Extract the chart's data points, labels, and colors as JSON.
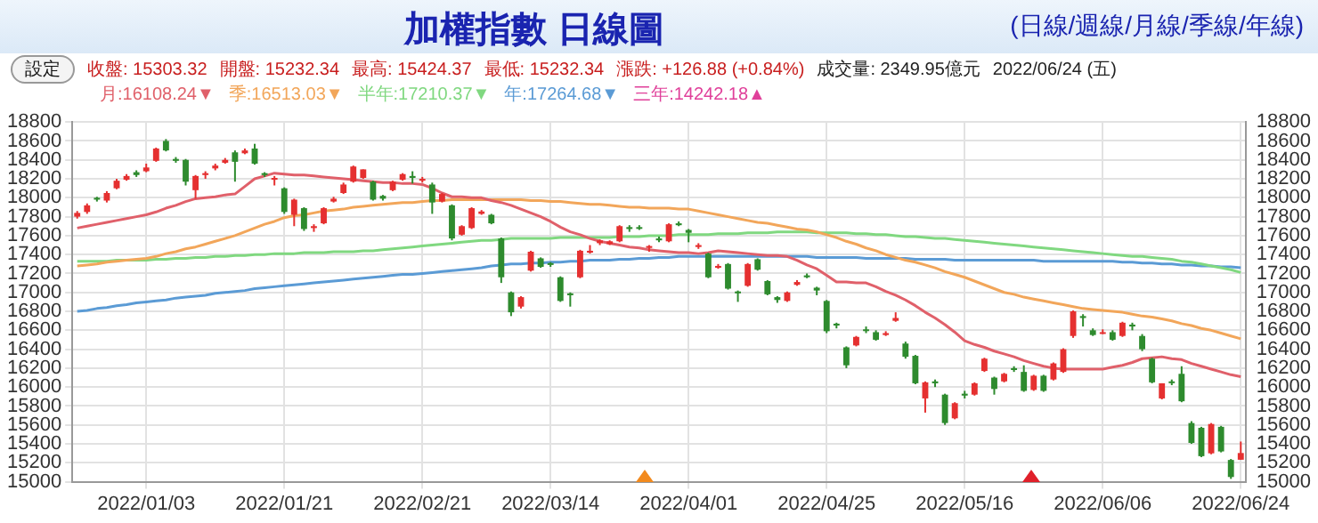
{
  "chart_data": {
    "type": "candlestick",
    "title": "加權指數 日線圖",
    "annotations": [
      "(日線/週線/月線/季線/年線)",
      "設定",
      "收盤: 15303.32",
      "開盤: 15232.34",
      "最高: 15424.37",
      "最低: 15232.34",
      "漲跌: +126.88 (+0.84%)",
      "成交量: 2349.95億元",
      "2022/06/24 (五)"
    ],
    "categories": [
      null,
      null,
      null,
      null,
      null,
      null,
      null,
      "2022/01/03",
      null,
      null,
      null,
      null,
      null,
      null,
      null,
      null,
      null,
      null,
      null,
      null,
      null,
      "2022/01/21",
      null,
      null,
      null,
      null,
      null,
      null,
      null,
      null,
      null,
      null,
      null,
      null,
      null,
      "2022/02/21",
      null,
      null,
      null,
      null,
      null,
      null,
      null,
      null,
      null,
      null,
      null,
      null,
      "2022/03/14",
      null,
      null,
      null,
      null,
      null,
      null,
      null,
      null,
      null,
      null,
      null,
      null,
      null,
      "2022/04/01",
      null,
      null,
      null,
      null,
      null,
      null,
      null,
      null,
      null,
      null,
      null,
      null,
      null,
      "2022/04/25",
      null,
      null,
      null,
      null,
      null,
      null,
      null,
      null,
      null,
      null,
      null,
      null,
      null,
      "2022/05/16",
      null,
      null,
      null,
      null,
      null,
      null,
      null,
      null,
      null,
      null,
      null,
      null,
      null,
      "2022/06/06",
      null,
      null,
      null,
      null,
      null,
      null,
      null,
      null,
      null,
      null,
      null,
      null,
      null,
      "2022/06/24"
    ],
    "ohlc": [
      [
        17800,
        17860,
        17780,
        17840
      ],
      [
        17850,
        17940,
        17830,
        17920
      ],
      [
        18000,
        18010,
        17960,
        17980
      ],
      [
        17970,
        18070,
        17950,
        18050
      ],
      [
        18100,
        18200,
        18090,
        18180
      ],
      [
        18190,
        18250,
        18180,
        18230
      ],
      [
        18270,
        18290,
        18220,
        18240
      ],
      [
        18280,
        18360,
        18270,
        18320
      ],
      [
        18390,
        18530,
        18380,
        18520
      ],
      [
        18600,
        18620,
        18490,
        18500
      ],
      [
        18410,
        18430,
        18370,
        18390
      ],
      [
        18400,
        18410,
        18130,
        18170
      ],
      [
        18080,
        18240,
        17990,
        18230
      ],
      [
        18240,
        18280,
        18200,
        18260
      ],
      [
        18310,
        18360,
        18290,
        18340
      ],
      [
        18370,
        18420,
        18360,
        18400
      ],
      [
        18480,
        18500,
        18170,
        18380
      ],
      [
        18470,
        18520,
        18460,
        18500
      ],
      [
        18520,
        18570,
        18350,
        18360
      ],
      [
        18260,
        18270,
        18220,
        18240
      ],
      [
        18190,
        18230,
        18130,
        18210
      ],
      [
        18100,
        18110,
        17830,
        17850
      ],
      [
        17820,
        17990,
        17700,
        17980
      ],
      [
        17890,
        17900,
        17650,
        17670
      ],
      [
        17680,
        17720,
        17640,
        17700
      ],
      [
        17730,
        17900,
        17720,
        17890
      ],
      [
        17960,
        18010,
        17950,
        17990
      ],
      [
        18050,
        18160,
        18040,
        18140
      ],
      [
        18170,
        18340,
        18160,
        18330
      ],
      [
        18210,
        18300,
        18200,
        18300
      ],
      [
        18170,
        18180,
        17970,
        17980
      ],
      [
        18020,
        18030,
        17970,
        17990
      ],
      [
        18080,
        18180,
        18070,
        18170
      ],
      [
        18190,
        18260,
        18180,
        18250
      ],
      [
        18230,
        18280,
        18150,
        18210
      ],
      [
        18180,
        18220,
        18160,
        18200
      ],
      [
        18140,
        18160,
        17830,
        17950
      ],
      [
        17960,
        18050,
        17950,
        18040
      ],
      [
        17920,
        17930,
        17550,
        17570
      ],
      [
        17610,
        17710,
        17600,
        17700
      ],
      [
        17680,
        17900,
        17670,
        17890
      ],
      [
        17830,
        17870,
        17820,
        17855
      ],
      [
        17820,
        17830,
        17720,
        17730
      ],
      [
        17570,
        17580,
        17100,
        17160
      ],
      [
        17000,
        17010,
        16750,
        16790
      ],
      [
        16850,
        16960,
        16830,
        16950
      ],
      [
        17230,
        17440,
        17220,
        17430
      ],
      [
        17360,
        17370,
        17260,
        17270
      ],
      [
        17310,
        17320,
        17270,
        17290
      ],
      [
        17160,
        17170,
        16900,
        16910
      ],
      [
        16990,
        17000,
        16850,
        16970
      ],
      [
        17160,
        17450,
        17150,
        17440
      ],
      [
        17420,
        17500,
        17410,
        17440
      ],
      [
        17520,
        17560,
        17500,
        17550
      ],
      [
        17510,
        17550,
        17500,
        17540
      ],
      [
        17540,
        17710,
        17530,
        17700
      ],
      [
        17690,
        17710,
        17640,
        17670
      ],
      [
        17690,
        17710,
        17660,
        17680
      ],
      [
        17470,
        17500,
        17430,
        17490
      ],
      [
        17570,
        17590,
        17530,
        17550
      ],
      [
        17540,
        17730,
        17530,
        17720
      ],
      [
        17730,
        17750,
        17700,
        17710
      ],
      [
        17660,
        17670,
        17530,
        17630
      ],
      [
        17480,
        17520,
        17460,
        17500
      ],
      [
        17410,
        17420,
        17150,
        17160
      ],
      [
        17260,
        17300,
        17250,
        17280
      ],
      [
        17300,
        17310,
        17030,
        17040
      ],
      [
        17010,
        17020,
        16900,
        16990
      ],
      [
        17070,
        17310,
        17060,
        17300
      ],
      [
        17350,
        17360,
        17230,
        17240
      ],
      [
        17120,
        17130,
        16970,
        16980
      ],
      [
        16950,
        16960,
        16890,
        16920
      ],
      [
        16910,
        17010,
        16900,
        17000
      ],
      [
        17080,
        17130,
        17070,
        17110
      ],
      [
        17180,
        17200,
        17150,
        17160
      ],
      [
        17050,
        17060,
        16970,
        17020
      ],
      [
        16910,
        16920,
        16570,
        16590
      ],
      [
        16670,
        16680,
        16620,
        16650
      ],
      [
        16420,
        16430,
        16200,
        16230
      ],
      [
        16440,
        16540,
        16430,
        16530
      ],
      [
        16610,
        16640,
        16570,
        16600
      ],
      [
        16580,
        16600,
        16490,
        16500
      ],
      [
        16550,
        16590,
        16540,
        16570
      ],
      [
        16700,
        16790,
        16690,
        16730
      ],
      [
        16460,
        16480,
        16300,
        16320
      ],
      [
        16330,
        16340,
        16030,
        16040
      ],
      [
        15880,
        16060,
        15730,
        16050
      ],
      [
        16060,
        16080,
        16000,
        16040
      ],
      [
        15920,
        15930,
        15600,
        15620
      ],
      [
        15670,
        15840,
        15660,
        15830
      ],
      [
        15930,
        15960,
        15880,
        15910
      ],
      [
        15920,
        16050,
        15910,
        16040
      ],
      [
        16170,
        16310,
        16160,
        16300
      ],
      [
        16100,
        16110,
        15920,
        15980
      ],
      [
        16060,
        16150,
        16050,
        16140
      ],
      [
        16200,
        16220,
        16160,
        16180
      ],
      [
        16160,
        16230,
        15950,
        15960
      ],
      [
        15970,
        16130,
        15960,
        16120
      ],
      [
        16120,
        16130,
        15950,
        15960
      ],
      [
        16080,
        16260,
        16070,
        16250
      ],
      [
        16160,
        16410,
        16150,
        16400
      ],
      [
        16540,
        16810,
        16520,
        16800
      ],
      [
        16750,
        16770,
        16640,
        16730
      ],
      [
        16600,
        16620,
        16540,
        16550
      ],
      [
        16570,
        16610,
        16560,
        16580
      ],
      [
        16580,
        16600,
        16490,
        16500
      ],
      [
        16540,
        16690,
        16530,
        16680
      ],
      [
        16660,
        16680,
        16600,
        16640
      ],
      [
        16540,
        16560,
        16380,
        16400
      ],
      [
        16300,
        16310,
        16040,
        16050
      ],
      [
        15880,
        16040,
        15870,
        16040
      ],
      [
        16060,
        16080,
        16020,
        16050
      ],
      [
        16140,
        16220,
        15840,
        15850
      ],
      [
        15620,
        15640,
        15400,
        15410
      ],
      [
        15570,
        15580,
        15260,
        15270
      ],
      [
        15300,
        15620,
        15290,
        15610
      ],
      [
        15580,
        15590,
        15310,
        15320
      ],
      [
        15230,
        15240,
        15030,
        15050
      ],
      [
        15232.34,
        15424.37,
        15232.34,
        15303.32
      ]
    ],
    "colors": [
      "#e53030",
      "#e53030",
      "#2e8b2e",
      "#e53030",
      "#e53030",
      "#e53030",
      "#2e8b2e",
      "#e53030",
      "#e53030",
      "#2e8b2e",
      "#2e8b2e",
      "#2e8b2e",
      "#e53030",
      "#e53030",
      "#e53030",
      "#e53030",
      "#2e8b2e",
      "#e53030",
      "#2e8b2e",
      "#2e8b2e",
      "#e53030",
      "#2e8b2e",
      "#e53030",
      "#2e8b2e",
      "#e53030",
      "#e53030",
      "#e53030",
      "#e53030",
      "#e53030",
      "#e53030",
      "#2e8b2e",
      "#2e8b2e",
      "#e53030",
      "#e53030",
      "#2e8b2e",
      "#e53030",
      "#2e8b2e",
      "#e53030",
      "#2e8b2e",
      "#e53030",
      "#e53030",
      "#e53030",
      "#2e8b2e",
      "#2e8b2e",
      "#2e8b2e",
      "#e53030",
      "#e53030",
      "#2e8b2e",
      "#2e8b2e",
      "#2e8b2e",
      "#2e8b2e",
      "#e53030",
      "#e53030",
      "#e53030",
      "#e53030",
      "#e53030",
      "#2e8b2e",
      "#2e8b2e",
      "#e53030",
      "#2e8b2e",
      "#e53030",
      "#2e8b2e",
      "#2e8b2e",
      "#e53030",
      "#2e8b2e",
      "#e53030",
      "#2e8b2e",
      "#2e8b2e",
      "#e53030",
      "#2e8b2e",
      "#2e8b2e",
      "#2e8b2e",
      "#e53030",
      "#e53030",
      "#2e8b2e",
      "#2e8b2e",
      "#2e8b2e",
      "#2e8b2e",
      "#2e8b2e",
      "#e53030",
      "#2e8b2e",
      "#2e8b2e",
      "#e53030",
      "#e53030",
      "#2e8b2e",
      "#2e8b2e",
      "#e53030",
      "#2e8b2e",
      "#2e8b2e",
      "#e53030",
      "#2e8b2e",
      "#e53030",
      "#e53030",
      "#2e8b2e",
      "#e53030",
      "#2e8b2e",
      "#2e8b2e",
      "#e53030",
      "#2e8b2e",
      "#e53030",
      "#e53030",
      "#e53030",
      "#2e8b2e",
      "#2e8b2e",
      "#e53030",
      "#2e8b2e",
      "#e53030",
      "#2e8b2e",
      "#2e8b2e",
      "#2e8b2e",
      "#e53030",
      "#2e8b2e",
      "#2e8b2e",
      "#2e8b2e",
      "#2e8b2e",
      "#e53030",
      "#2e8b2e",
      "#2e8b2e",
      "#e53030"
    ],
    "series": [
      {
        "type": "line",
        "name": "月:16108.24▼",
        "color": "#e0606a",
        "values": [
          17680,
          17700,
          17720,
          17740,
          17760,
          17780,
          17800,
          17820,
          17850,
          17890,
          17920,
          17960,
          17990,
          18000,
          18010,
          18030,
          18040,
          18120,
          18200,
          18230,
          18260,
          18250,
          18240,
          18240,
          18230,
          18220,
          18210,
          18200,
          18190,
          18180,
          18170,
          18160,
          18160,
          18150,
          18150,
          18140,
          18100,
          18050,
          18010,
          18010,
          18000,
          18000,
          17970,
          17950,
          17920,
          17880,
          17840,
          17800,
          17750,
          17690,
          17640,
          17610,
          17570,
          17540,
          17520,
          17500,
          17480,
          17470,
          17450,
          17440,
          17430,
          17420,
          17420,
          17410,
          17420,
          17440,
          17430,
          17420,
          17410,
          17400,
          17390,
          17390,
          17380,
          17340,
          17290,
          17250,
          17180,
          17110,
          17110,
          17100,
          17100,
          17060,
          17010,
          16970,
          16920,
          16860,
          16790,
          16730,
          16660,
          16580,
          16490,
          16450,
          16420,
          16380,
          16350,
          16320,
          16280,
          16250,
          16220,
          16200,
          16190,
          16190,
          16190,
          16190,
          16190,
          16210,
          16230,
          16260,
          16300,
          16310,
          16320,
          16300,
          16290,
          16250,
          16220,
          16190,
          16160,
          16130,
          16110
        ]
      },
      {
        "type": "line",
        "name": "季:16513.03▼",
        "color": "#f2a65a",
        "values": [
          17280,
          17290,
          17300,
          17320,
          17330,
          17340,
          17350,
          17360,
          17380,
          17410,
          17430,
          17460,
          17480,
          17510,
          17540,
          17570,
          17600,
          17640,
          17680,
          17720,
          17750,
          17790,
          17810,
          17820,
          17840,
          17860,
          17870,
          17880,
          17900,
          17910,
          17920,
          17930,
          17940,
          17950,
          17950,
          17960,
          17970,
          17970,
          17980,
          17980,
          17980,
          17980,
          17980,
          17980,
          17980,
          17980,
          17970,
          17970,
          17960,
          17960,
          17950,
          17940,
          17930,
          17930,
          17920,
          17910,
          17900,
          17900,
          17890,
          17890,
          17890,
          17880,
          17880,
          17860,
          17840,
          17820,
          17800,
          17780,
          17760,
          17740,
          17730,
          17710,
          17690,
          17670,
          17660,
          17640,
          17610,
          17580,
          17540,
          17510,
          17470,
          17440,
          17400,
          17370,
          17340,
          17320,
          17290,
          17260,
          17220,
          17190,
          17160,
          17120,
          17080,
          17040,
          17000,
          16980,
          16950,
          16930,
          16910,
          16890,
          16870,
          16850,
          16830,
          16820,
          16810,
          16800,
          16790,
          16770,
          16750,
          16740,
          16720,
          16700,
          16670,
          16650,
          16620,
          16600,
          16570,
          16540,
          16510
        ]
      },
      {
        "type": "line",
        "name": "半年:17210.37▼",
        "color": "#80d880",
        "values": [
          17330,
          17330,
          17330,
          17330,
          17340,
          17340,
          17340,
          17340,
          17350,
          17350,
          17360,
          17360,
          17370,
          17370,
          17380,
          17380,
          17390,
          17390,
          17400,
          17400,
          17410,
          17410,
          17410,
          17420,
          17420,
          17420,
          17430,
          17430,
          17430,
          17440,
          17440,
          17450,
          17460,
          17470,
          17480,
          17490,
          17500,
          17510,
          17520,
          17530,
          17540,
          17550,
          17550,
          17560,
          17570,
          17570,
          17570,
          17570,
          17570,
          17580,
          17580,
          17580,
          17580,
          17580,
          17580,
          17590,
          17590,
          17590,
          17600,
          17600,
          17600,
          17610,
          17610,
          17610,
          17610,
          17620,
          17620,
          17620,
          17630,
          17630,
          17630,
          17640,
          17640,
          17640,
          17640,
          17630,
          17630,
          17630,
          17630,
          17620,
          17620,
          17610,
          17610,
          17600,
          17590,
          17590,
          17580,
          17570,
          17570,
          17560,
          17550,
          17540,
          17530,
          17520,
          17510,
          17500,
          17490,
          17480,
          17470,
          17460,
          17450,
          17440,
          17430,
          17420,
          17410,
          17400,
          17390,
          17380,
          17380,
          17370,
          17360,
          17350,
          17330,
          17320,
          17300,
          17280,
          17260,
          17240,
          17210
        ]
      },
      {
        "type": "line",
        "name": "年:17264.68▼",
        "color": "#5b9bd5",
        "values": [
          16800,
          16810,
          16830,
          16840,
          16860,
          16870,
          16890,
          16900,
          16910,
          16920,
          16940,
          16950,
          16960,
          16970,
          16990,
          17000,
          17010,
          17020,
          17040,
          17050,
          17060,
          17070,
          17080,
          17090,
          17100,
          17110,
          17120,
          17130,
          17140,
          17150,
          17160,
          17170,
          17180,
          17190,
          17190,
          17200,
          17210,
          17220,
          17230,
          17240,
          17250,
          17260,
          17280,
          17290,
          17300,
          17300,
          17310,
          17310,
          17320,
          17320,
          17330,
          17330,
          17340,
          17340,
          17340,
          17350,
          17350,
          17360,
          17360,
          17370,
          17370,
          17380,
          17380,
          17380,
          17380,
          17380,
          17380,
          17380,
          17380,
          17380,
          17380,
          17380,
          17380,
          17380,
          17380,
          17370,
          17370,
          17370,
          17370,
          17370,
          17360,
          17360,
          17360,
          17360,
          17360,
          17350,
          17350,
          17350,
          17350,
          17340,
          17340,
          17340,
          17340,
          17340,
          17340,
          17340,
          17340,
          17340,
          17330,
          17330,
          17330,
          17330,
          17330,
          17330,
          17330,
          17330,
          17320,
          17320,
          17310,
          17310,
          17300,
          17300,
          17290,
          17290,
          17280,
          17280,
          17270,
          17270,
          17260
        ]
      },
      {
        "type": "line",
        "name": "三年:14242.18▲",
        "color": "#e0409a",
        "values": [
          null,
          null,
          null,
          null,
          null,
          null,
          null,
          null,
          null,
          null,
          null,
          null,
          null,
          null,
          null,
          null,
          null,
          null,
          null,
          null,
          null,
          null,
          null,
          null,
          null,
          null,
          null,
          null,
          null,
          null,
          null,
          null,
          null,
          null,
          null,
          null,
          null,
          null,
          null,
          null,
          null,
          null,
          null,
          null,
          null,
          null,
          null,
          null,
          null,
          null,
          null,
          null,
          null,
          null,
          null,
          null,
          null,
          null,
          null,
          null,
          null,
          null,
          null,
          null,
          null,
          null,
          null,
          null,
          null,
          null,
          null,
          null,
          null,
          null,
          null,
          null,
          null,
          null,
          null,
          null,
          null,
          null,
          null,
          null,
          null,
          null,
          null,
          null,
          null,
          null,
          null,
          null,
          null,
          null,
          null,
          null,
          null,
          null,
          null,
          null,
          null,
          null,
          null,
          null,
          null,
          null,
          null,
          null,
          null,
          null,
          null,
          null,
          null,
          null,
          null,
          null,
          null,
          null,
          null
        ]
      }
    ],
    "ylim": [
      15000,
      18800
    ],
    "yticks": [
      15000,
      15200,
      15400,
      15600,
      15800,
      16000,
      16200,
      16400,
      16600,
      16800,
      17000,
      17200,
      17400,
      17600,
      17800,
      18000,
      18200,
      18400,
      18600,
      18800
    ],
    "y2lim": [
      15000,
      18800
    ],
    "y2ticks": [
      15000,
      15200,
      15400,
      15600,
      15800,
      16000,
      16200,
      16400,
      16600,
      16800,
      17000,
      17200,
      17400,
      17600,
      17800,
      18000,
      18200,
      18400,
      18600,
      18800
    ],
    "grid": true,
    "legend": "top left"
  }
}
